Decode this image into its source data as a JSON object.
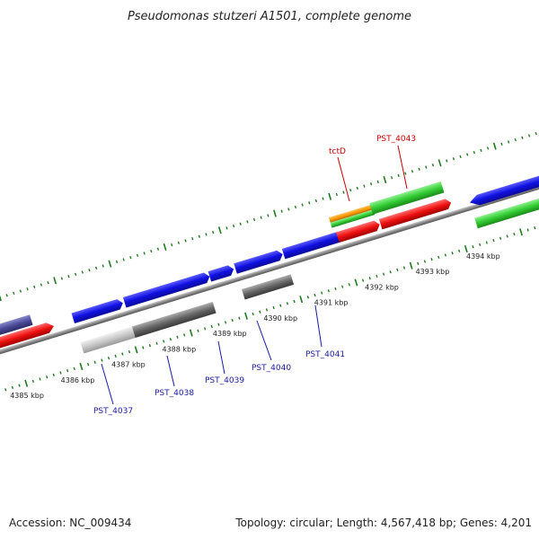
{
  "title": "Pseudomonas stutzeri A1501, complete genome",
  "footer": {
    "accession": "Accession: NC_009434",
    "summary": "Topology: circular; Length: 4,567,418 bp; Genes: 4,201"
  },
  "ruler": {
    "ticks": [
      "4385 kbp",
      "4386 kbp",
      "4387 kbp",
      "4388 kbp",
      "4389 kbp",
      "4390 kbp",
      "4391 kbp",
      "4392 kbp",
      "4393 kbp",
      "4394 kbp"
    ]
  },
  "gene_labels": [
    {
      "text": "PST_4037",
      "color": "#1a1aa6"
    },
    {
      "text": "PST_4038",
      "color": "#1a1aa6"
    },
    {
      "text": "PST_4039",
      "color": "#1a1aa6"
    },
    {
      "text": "PST_4040",
      "color": "#1a1aa6"
    },
    {
      "text": "PST_4041",
      "color": "#1a1aa6"
    },
    {
      "text": "tctD",
      "color": "#cc0000"
    },
    {
      "text": "PST_4043",
      "color": "#cc0000"
    }
  ],
  "colors": {
    "backbone": "#888888",
    "tick_green": "#1f7a1f",
    "cds_blue": "#1010e0",
    "cds_red": "#ee1111",
    "cds_green": "#33cc33",
    "cds_orange": "#ff9900",
    "cds_purple": "#4a4a99",
    "cds_gray": "#666666",
    "cds_lightgray": "#bbbbbb"
  }
}
